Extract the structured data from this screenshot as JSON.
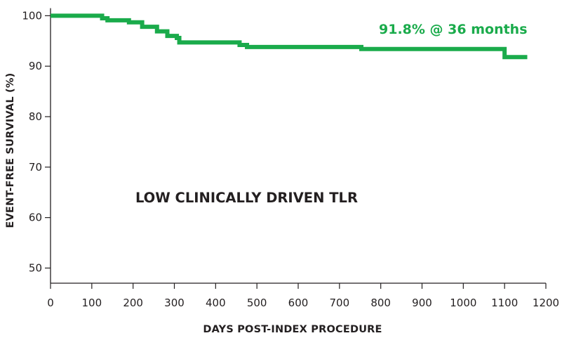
{
  "chart_data": {
    "type": "line",
    "title": "",
    "xlabel": "DAYS POST-INDEX PROCEDURE",
    "ylabel": "EVENT-FREE SURVIVAL (%)",
    "xlim": [
      0,
      1200
    ],
    "ylim": [
      47,
      102
    ],
    "x_ticks": [
      0,
      100,
      200,
      300,
      400,
      500,
      600,
      700,
      800,
      900,
      1000,
      1100,
      1200
    ],
    "y_ticks": [
      50,
      60,
      70,
      80,
      90,
      100
    ],
    "grid": false,
    "legend": "none",
    "series": [
      {
        "color": "#1aab4b",
        "step": true,
        "x": [
          0,
          125,
          138,
          190,
          222,
          258,
          283,
          306,
          312,
          458,
          476,
          753,
          1100,
          1155
        ],
        "y": [
          100,
          99.5,
          99.1,
          98.7,
          97.8,
          96.9,
          96.0,
          95.6,
          94.7,
          94.2,
          93.8,
          93.4,
          91.8,
          91.8
        ]
      }
    ],
    "annotations": [
      {
        "text": "91.8% @ 36 months",
        "x": 1155,
        "y": 96.4,
        "anchor": "end",
        "color": "#1aab4b",
        "class": "annot-end",
        "name": "end-value-annotation"
      },
      {
        "text": "LOW CLINICALLY DRIVEN TLR",
        "x": 475,
        "y": 63,
        "anchor": "middle",
        "color": "#231f20",
        "class": "annot-center",
        "name": "center-annotation"
      }
    ]
  }
}
